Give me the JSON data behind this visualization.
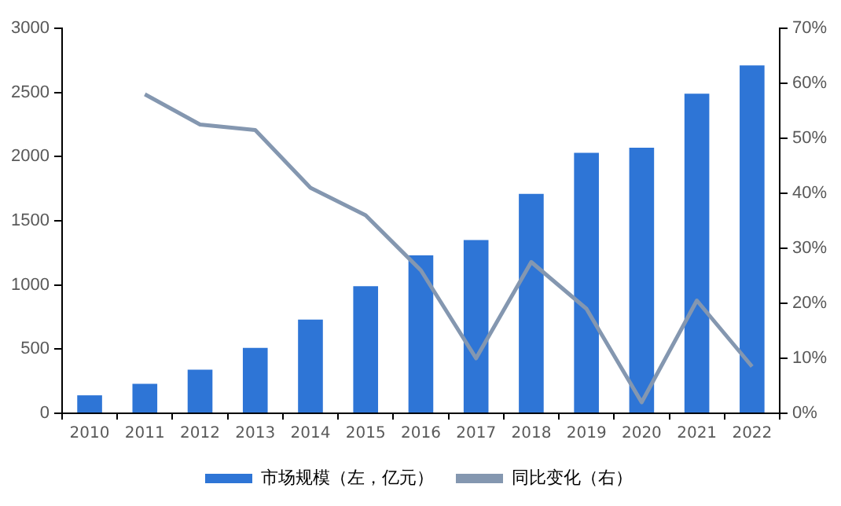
{
  "chart_data": {
    "type": "bar",
    "categories": [
      "2010",
      "2011",
      "2012",
      "2013",
      "2014",
      "2015",
      "2016",
      "2017",
      "2018",
      "2019",
      "2020",
      "2021",
      "2022"
    ],
    "series": [
      {
        "name": "市场规模（左，亿元）",
        "color": "#2e75d6",
        "values": [
          140,
          230,
          340,
          510,
          730,
          990,
          1230,
          1350,
          1710,
          2030,
          2070,
          2490,
          2710
        ]
      },
      {
        "name": "同比变化（右）",
        "type": "line",
        "axis": "y2",
        "color": "#8497b0",
        "marker": "none",
        "values": [
          null,
          58,
          52.5,
          51.5,
          41,
          36,
          26,
          10,
          27.5,
          19,
          2,
          20.5,
          8.5
        ]
      }
    ],
    "ylim": [
      0,
      3000
    ],
    "yticks": [
      0,
      500,
      1000,
      1500,
      2000,
      2500,
      3000
    ],
    "y2lim": [
      0,
      70
    ],
    "y2ticks": [
      {
        "value": 0,
        "label": "0%"
      },
      {
        "value": 10,
        "label": "10%"
      },
      {
        "value": 20,
        "label": "20%"
      },
      {
        "value": 30,
        "label": "30%"
      },
      {
        "value": 40,
        "label": "40%"
      },
      {
        "value": 50,
        "label": "50%"
      },
      {
        "value": 60,
        "label": "60%"
      },
      {
        "value": 70,
        "label": "70%"
      }
    ],
    "grid": false,
    "legend": "bottom"
  }
}
